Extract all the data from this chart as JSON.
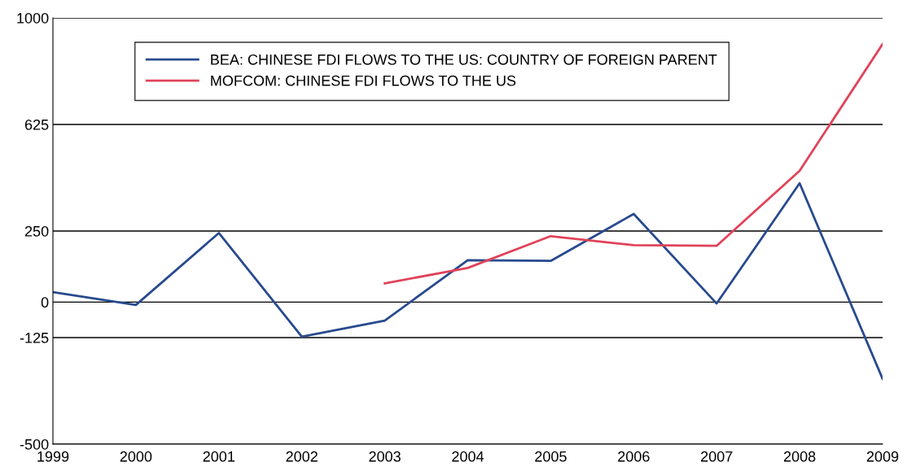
{
  "chart_data": {
    "type": "line",
    "x": [
      1999,
      2000,
      2001,
      2002,
      2003,
      2004,
      2005,
      2006,
      2007,
      2008,
      2009
    ],
    "series": [
      {
        "name": "BEA: CHINESE FDI FLOWS TO THE US: COUNTRY OF FOREIGN PARENT",
        "color": "#284a8e",
        "values": [
          35,
          -10,
          243,
          -122,
          -65,
          147,
          145,
          310,
          -5,
          418,
          -270
        ]
      },
      {
        "name": "MOFCOM: CHINESE FDI FLOWS TO THE US",
        "color": "#e0435a",
        "values": [
          null,
          null,
          null,
          null,
          66,
          120,
          232,
          200,
          198,
          462,
          908
        ]
      }
    ],
    "xlim": [
      1999,
      2009
    ],
    "xticks": [
      1999,
      2000,
      2001,
      2002,
      2003,
      2004,
      2005,
      2006,
      2007,
      2008,
      2009
    ],
    "ylim": [
      -500,
      1000
    ],
    "yticks": [
      -500,
      -125,
      0,
      250,
      625,
      1000
    ],
    "grid": "y",
    "legend": "top left",
    "marker": "none",
    "line_style": "solid"
  }
}
